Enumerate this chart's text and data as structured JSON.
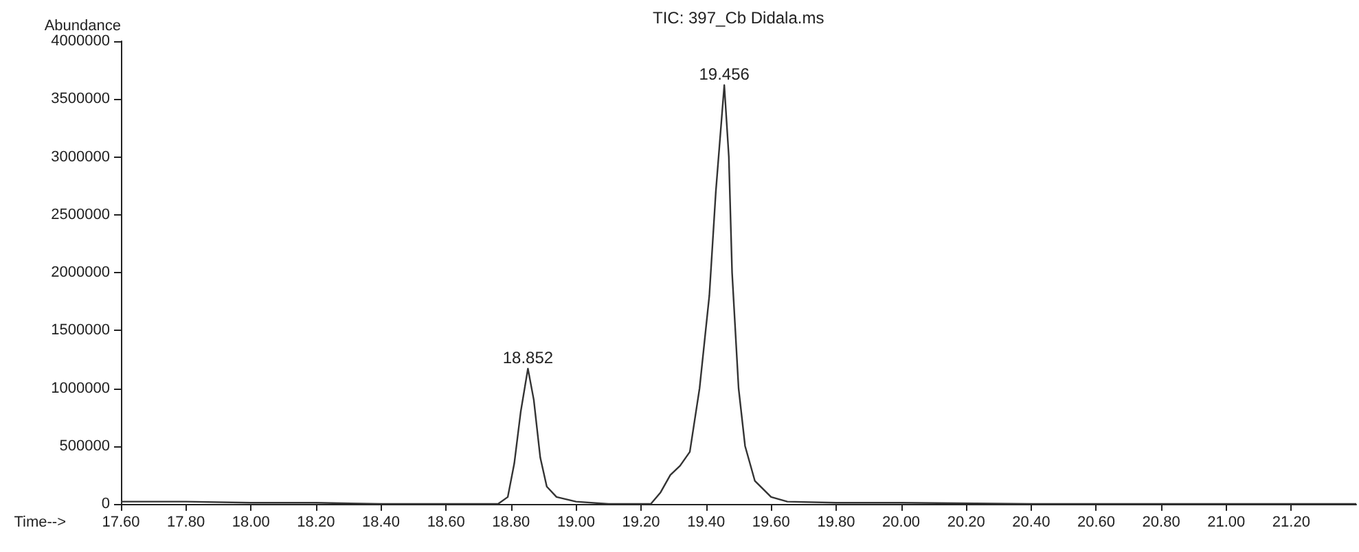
{
  "chart_data": {
    "type": "line",
    "title": "TIC: 397_Cb Didala.ms",
    "xlabel": "Time-->",
    "ylabel": "Abundance",
    "x": [
      17.6,
      17.8,
      18.0,
      18.2,
      18.4,
      18.6,
      18.76,
      18.79,
      18.81,
      18.83,
      18.852,
      18.87,
      18.89,
      18.91,
      18.94,
      19.0,
      19.1,
      19.23,
      19.26,
      19.29,
      19.32,
      19.35,
      19.38,
      19.41,
      19.43,
      19.456,
      19.47,
      19.48,
      19.5,
      19.52,
      19.55,
      19.6,
      19.65,
      19.8,
      20.0,
      20.4,
      20.8,
      21.2,
      21.4
    ],
    "series": [
      {
        "color": "#333333",
        "values": [
          20000,
          20000,
          10000,
          10000,
          0,
          0,
          0,
          60000,
          350000,
          800000,
          1170000,
          900000,
          400000,
          150000,
          60000,
          20000,
          0,
          0,
          100000,
          250000,
          330000,
          450000,
          1000000,
          1800000,
          2700000,
          3620000,
          3000000,
          2000000,
          1000000,
          500000,
          200000,
          60000,
          20000,
          10000,
          10000,
          0,
          0,
          0,
          0
        ]
      }
    ],
    "xlim": [
      17.6,
      21.4
    ],
    "xticks": [
      {
        "value": 17.6,
        "label": "17.60"
      },
      {
        "value": 17.8,
        "label": "17.80"
      },
      {
        "value": 18.0,
        "label": "18.00"
      },
      {
        "value": 18.2,
        "label": "18.20"
      },
      {
        "value": 18.4,
        "label": "18.40"
      },
      {
        "value": 18.6,
        "label": "18.60"
      },
      {
        "value": 18.8,
        "label": "18.80"
      },
      {
        "value": 19.0,
        "label": "19.00"
      },
      {
        "value": 19.2,
        "label": "19.20"
      },
      {
        "value": 19.4,
        "label": "19.40"
      },
      {
        "value": 19.6,
        "label": "19.60"
      },
      {
        "value": 19.8,
        "label": "19.80"
      },
      {
        "value": 20.0,
        "label": "20.00"
      },
      {
        "value": 20.2,
        "label": "20.20"
      },
      {
        "value": 20.4,
        "label": "20.40"
      },
      {
        "value": 20.6,
        "label": "20.60"
      },
      {
        "value": 20.8,
        "label": "20.80"
      },
      {
        "value": 21.0,
        "label": "21.00"
      },
      {
        "value": 21.2,
        "label": "21.20"
      }
    ],
    "ylim": [
      0,
      4000000
    ],
    "yticks": [
      0,
      500000,
      1000000,
      1500000,
      2000000,
      2500000,
      3000000,
      3500000,
      4000000
    ],
    "annotations": [
      {
        "text": "18.852",
        "x": 18.852,
        "y": 1170000
      },
      {
        "text": "19.456",
        "x": 19.456,
        "y": 3620000
      }
    ],
    "marker": "none",
    "line_style": "solid"
  }
}
